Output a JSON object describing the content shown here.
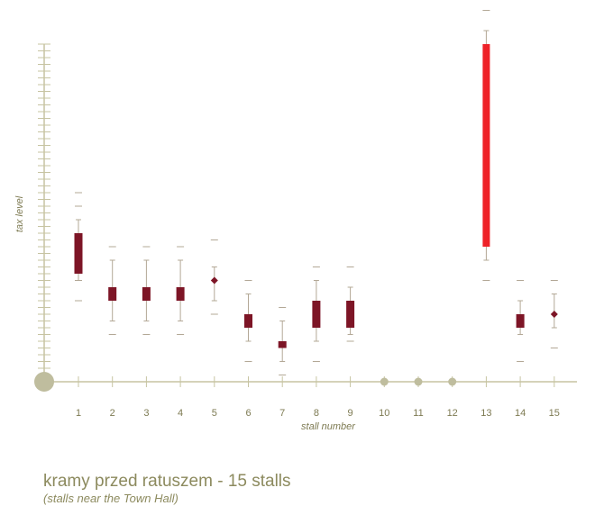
{
  "chart_data": {
    "type": "box",
    "title": "kramy przed ratuszem - 15 stalls",
    "subtitle": "(stalls near the Town Hall)",
    "xlabel": "stall number",
    "ylabel": "tax level",
    "categories": [
      "1",
      "2",
      "3",
      "4",
      "5",
      "6",
      "7",
      "8",
      "9",
      "10",
      "11",
      "12",
      "13",
      "14",
      "15"
    ],
    "ylim": [
      0,
      25
    ],
    "series": [
      {
        "x": "1",
        "min": 7.5,
        "whisker_low": 7.5,
        "q1": 8,
        "q3": 11,
        "whisker_high": 12,
        "max": 13,
        "extra": [
          14,
          6
        ]
      },
      {
        "x": "2",
        "min": 3.5,
        "whisker_low": 4.5,
        "q1": 6,
        "q3": 7,
        "whisker_high": 9,
        "max": 10
      },
      {
        "x": "3",
        "min": 3.5,
        "whisker_low": 4.5,
        "q1": 6,
        "q3": 7,
        "whisker_high": 9,
        "max": 10
      },
      {
        "x": "4",
        "min": 3.5,
        "whisker_low": 4.5,
        "q1": 6,
        "q3": 7,
        "whisker_high": 9,
        "max": 10
      },
      {
        "x": "5",
        "min": 5,
        "whisker_low": 6,
        "q1": 7.5,
        "q3": 7.5,
        "whisker_high": 8.5,
        "max": 10.5
      },
      {
        "x": "6",
        "min": 1.5,
        "whisker_low": 3,
        "q1": 4,
        "q3": 5,
        "whisker_high": 6.5,
        "max": 7.5
      },
      {
        "x": "7",
        "min": 0.5,
        "whisker_low": 1.5,
        "q1": 2.5,
        "q3": 3,
        "whisker_high": 4.5,
        "max": 5.5
      },
      {
        "x": "8",
        "min": 1.5,
        "whisker_low": 3,
        "q1": 4,
        "q3": 6,
        "whisker_high": 7.5,
        "max": 8.5
      },
      {
        "x": "9",
        "min": 3,
        "whisker_low": 3.5,
        "q1": 4,
        "q3": 6,
        "whisker_high": 7,
        "max": 8.5
      },
      {
        "x": "10",
        "empty": true
      },
      {
        "x": "11",
        "empty": true
      },
      {
        "x": "12",
        "empty": true
      },
      {
        "x": "13",
        "min": 7.5,
        "whisker_low": 9,
        "q1": 10,
        "q3": 25,
        "whisker_high": 26,
        "max": 27.5,
        "highlight": true
      },
      {
        "x": "14",
        "min": 1.5,
        "whisker_low": 3.5,
        "q1": 4,
        "q3": 5,
        "whisker_high": 6,
        "max": 7.5
      },
      {
        "x": "15",
        "min": 2.5,
        "whisker_low": 4,
        "q1": 5,
        "q3": 5,
        "whisker_high": 6.5,
        "max": 7.5
      }
    ],
    "colors": {
      "box": "#7d1526",
      "highlight": "#ee2228",
      "whisker": "#b3a896",
      "axis": "#c7c4a2",
      "label": "#7d7a52",
      "empty_marker": "#bfbd9e"
    },
    "grid": false,
    "legend": "none"
  }
}
